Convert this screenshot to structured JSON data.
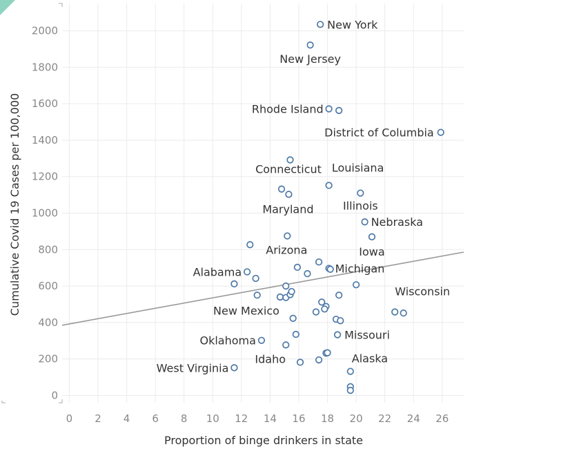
{
  "chart_data": {
    "type": "scatter",
    "title": "",
    "xlabel": "Proportion of binge drinkers in state",
    "ylabel": "Cumulative Covid 19 Cases per 100,000",
    "xlim": [
      -0.5,
      27.5
    ],
    "ylim": [
      -40,
      2150
    ],
    "xticks": [
      0,
      2,
      4,
      6,
      8,
      10,
      12,
      14,
      16,
      18,
      20,
      22,
      24,
      26
    ],
    "yticks": [
      0,
      200,
      400,
      600,
      800,
      1000,
      1200,
      1400,
      1600,
      1800,
      2000
    ],
    "grid": true,
    "legend": "none",
    "colors": {
      "marker": "#4e79a7",
      "trendline": "#999999",
      "grid": "#ebebeb",
      "label": "#333333",
      "axis_text": "#888888"
    },
    "trendline": {
      "x": [
        -0.5,
        27.5
      ],
      "y": [
        385,
        786
      ]
    },
    "points": [
      {
        "x": 17.5,
        "y": 2035,
        "label": "New York"
      },
      {
        "x": 16.8,
        "y": 1922,
        "label": "New Jersey"
      },
      {
        "x": 18.1,
        "y": 1572,
        "label": "Rhode Island"
      },
      {
        "x": 18.8,
        "y": 1563,
        "label": ""
      },
      {
        "x": 25.9,
        "y": 1443,
        "label": "District of Columbia"
      },
      {
        "x": 15.4,
        "y": 1292,
        "label": ""
      },
      {
        "x": 14.8,
        "y": 1132,
        "label": "Connecticut"
      },
      {
        "x": 18.1,
        "y": 1152,
        "label": "Louisiana"
      },
      {
        "x": 15.3,
        "y": 1103,
        "label": "Maryland"
      },
      {
        "x": 20.3,
        "y": 1110,
        "label": "Illinois"
      },
      {
        "x": 20.6,
        "y": 952,
        "label": "Nebraska"
      },
      {
        "x": 21.1,
        "y": 870,
        "label": "Iowa"
      },
      {
        "x": 15.2,
        "y": 875,
        "label": "Arizona"
      },
      {
        "x": 12.6,
        "y": 827,
        "label": ""
      },
      {
        "x": 17.4,
        "y": 732,
        "label": ""
      },
      {
        "x": 15.9,
        "y": 703,
        "label": ""
      },
      {
        "x": 18.1,
        "y": 697,
        "label": "Michigan"
      },
      {
        "x": 18.2,
        "y": 692,
        "label": ""
      },
      {
        "x": 16.6,
        "y": 668,
        "label": ""
      },
      {
        "x": 12.4,
        "y": 678,
        "label": "Alabama"
      },
      {
        "x": 13.0,
        "y": 642,
        "label": ""
      },
      {
        "x": 11.5,
        "y": 612,
        "label": ""
      },
      {
        "x": 15.1,
        "y": 600,
        "label": ""
      },
      {
        "x": 20.0,
        "y": 607,
        "label": ""
      },
      {
        "x": 13.1,
        "y": 550,
        "label": ""
      },
      {
        "x": 14.7,
        "y": 540,
        "label": ""
      },
      {
        "x": 15.1,
        "y": 537,
        "label": ""
      },
      {
        "x": 15.4,
        "y": 553,
        "label": ""
      },
      {
        "x": 15.5,
        "y": 570,
        "label": ""
      },
      {
        "x": 18.8,
        "y": 550,
        "label": ""
      },
      {
        "x": 17.6,
        "y": 512,
        "label": ""
      },
      {
        "x": 17.9,
        "y": 488,
        "label": ""
      },
      {
        "x": 17.8,
        "y": 474,
        "label": ""
      },
      {
        "x": 17.2,
        "y": 458,
        "label": "New Mexico"
      },
      {
        "x": 15.6,
        "y": 423,
        "label": ""
      },
      {
        "x": 18.6,
        "y": 418,
        "label": ""
      },
      {
        "x": 18.9,
        "y": 410,
        "label": ""
      },
      {
        "x": 22.7,
        "y": 458,
        "label": "Wisconsin"
      },
      {
        "x": 23.3,
        "y": 452,
        "label": ""
      },
      {
        "x": 15.8,
        "y": 335,
        "label": ""
      },
      {
        "x": 18.7,
        "y": 333,
        "label": "Missouri"
      },
      {
        "x": 13.4,
        "y": 302,
        "label": "Oklahoma"
      },
      {
        "x": 15.1,
        "y": 277,
        "label": ""
      },
      {
        "x": 17.9,
        "y": 232,
        "label": ""
      },
      {
        "x": 18.0,
        "y": 234,
        "label": ""
      },
      {
        "x": 17.4,
        "y": 195,
        "label": ""
      },
      {
        "x": 16.1,
        "y": 182,
        "label": "Idaho"
      },
      {
        "x": 19.6,
        "y": 132,
        "label": "Alaska"
      },
      {
        "x": 11.5,
        "y": 152,
        "label": "West Virginia"
      },
      {
        "x": 19.6,
        "y": 48,
        "label": ""
      },
      {
        "x": 19.6,
        "y": 28,
        "label": ""
      }
    ]
  }
}
